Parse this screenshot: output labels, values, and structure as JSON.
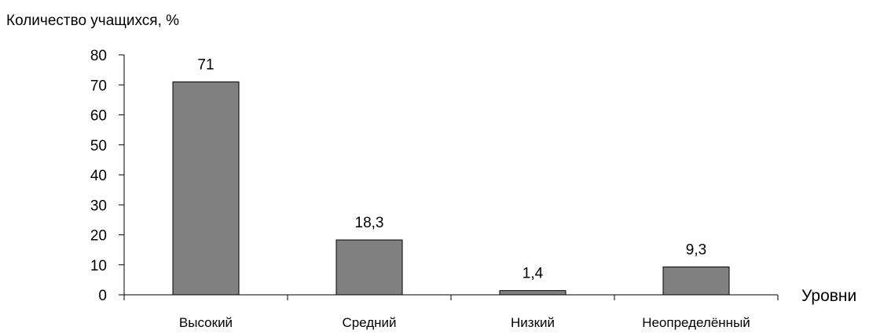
{
  "chart_data": {
    "type": "bar",
    "ylabel": "Количество учащихся, %",
    "xlabel": "Уровни",
    "categories": [
      "Высокий",
      "Средний",
      "Низкий",
      "Неопределённый"
    ],
    "values": [
      71,
      18.3,
      1.4,
      9.3
    ],
    "data_labels": [
      "71",
      "18,3",
      "1,4",
      "9,3"
    ],
    "ylim": [
      0,
      80
    ],
    "yticks": [
      0,
      10,
      20,
      30,
      40,
      50,
      60,
      70,
      80
    ],
    "grid": false,
    "legend": "none",
    "bar_color": "#808080",
    "bar_stroke": "#000000"
  }
}
